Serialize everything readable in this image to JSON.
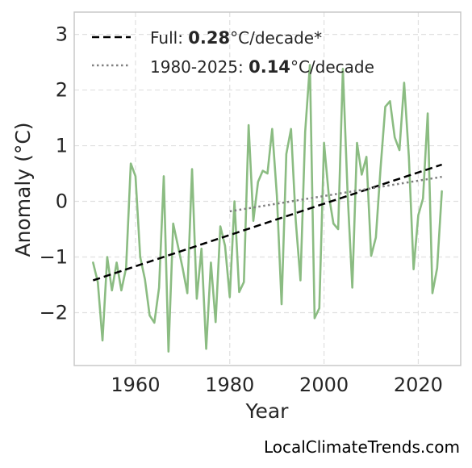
{
  "chart_data": {
    "type": "line",
    "xlabel": "Year",
    "ylabel": "Anomaly (°C)",
    "xlim": [
      1947,
      2029
    ],
    "ylim": [
      -2.95,
      3.4
    ],
    "x_ticks": [
      "1960",
      "1980",
      "2000",
      "2020"
    ],
    "y_ticks": [
      "3",
      "2",
      "1",
      "0",
      "−1",
      "−2"
    ],
    "grid": true,
    "legend_placement": "top-left",
    "series": [
      {
        "x": [
          1951,
          1952,
          1953,
          1954,
          1955,
          1956,
          1957,
          1958,
          1959,
          1960,
          1961,
          1962,
          1963,
          1964,
          1965,
          1966,
          1967,
          1968,
          1969,
          1970,
          1971,
          1972,
          1973,
          1974,
          1975,
          1976,
          1977,
          1978,
          1979,
          1980,
          1981,
          1982,
          1983,
          1984,
          1985,
          1986,
          1987,
          1988,
          1989,
          1990,
          1991,
          1992,
          1993,
          1994,
          1995,
          1996,
          1997,
          1998,
          1999,
          2000,
          2001,
          2002,
          2003,
          2004,
          2005,
          2006,
          2007,
          2008,
          2009,
          2010,
          2011,
          2012,
          2013,
          2014,
          2015,
          2016,
          2017,
          2018,
          2019,
          2020,
          2021,
          2022,
          2023,
          2024,
          2025
        ],
        "values": [
          -1.1,
          -1.45,
          -2.5,
          -1.0,
          -1.6,
          -1.1,
          -1.6,
          -1.2,
          0.68,
          0.45,
          -1.0,
          -1.4,
          -2.05,
          -2.18,
          -1.55,
          0.45,
          -2.7,
          -0.4,
          -0.8,
          -1.2,
          -1.65,
          0.58,
          -1.75,
          -0.85,
          -2.65,
          -1.1,
          -2.17,
          -0.45,
          -0.8,
          -1.72,
          0.0,
          -1.63,
          -1.45,
          1.37,
          -0.35,
          0.35,
          0.55,
          0.5,
          1.3,
          0.1,
          -1.85,
          0.85,
          1.3,
          -0.35,
          -1.42,
          1.25,
          2.45,
          -2.1,
          -1.92,
          1.05,
          0.12,
          -0.4,
          -0.5,
          2.38,
          0.15,
          -1.55,
          1.05,
          0.48,
          0.8,
          -0.98,
          -0.65,
          0.6,
          1.7,
          1.8,
          1.15,
          0.92,
          2.13,
          0.8,
          -1.22,
          -0.25,
          0.05,
          1.58,
          -1.65,
          -1.2,
          0.18
        ],
        "color": "#8bbc82"
      },
      {
        "name": "Full",
        "x": [
          1951,
          2025
        ],
        "values": [
          -1.42,
          0.66
        ],
        "color": "#000000",
        "style": "dashed"
      },
      {
        "name": "1980-2025",
        "x": [
          1980,
          2025
        ],
        "values": [
          -0.18,
          0.44
        ],
        "color": "#808080",
        "style": "dotted"
      }
    ]
  },
  "legend": {
    "full": {
      "prefix": "Full: ",
      "rate": "0.28",
      "suffix": "°C/decade*"
    },
    "recent": {
      "prefix": "1980-2025: ",
      "rate": "0.14",
      "suffix": "°C/decade"
    }
  },
  "credit": "LocalClimateTrends.com"
}
